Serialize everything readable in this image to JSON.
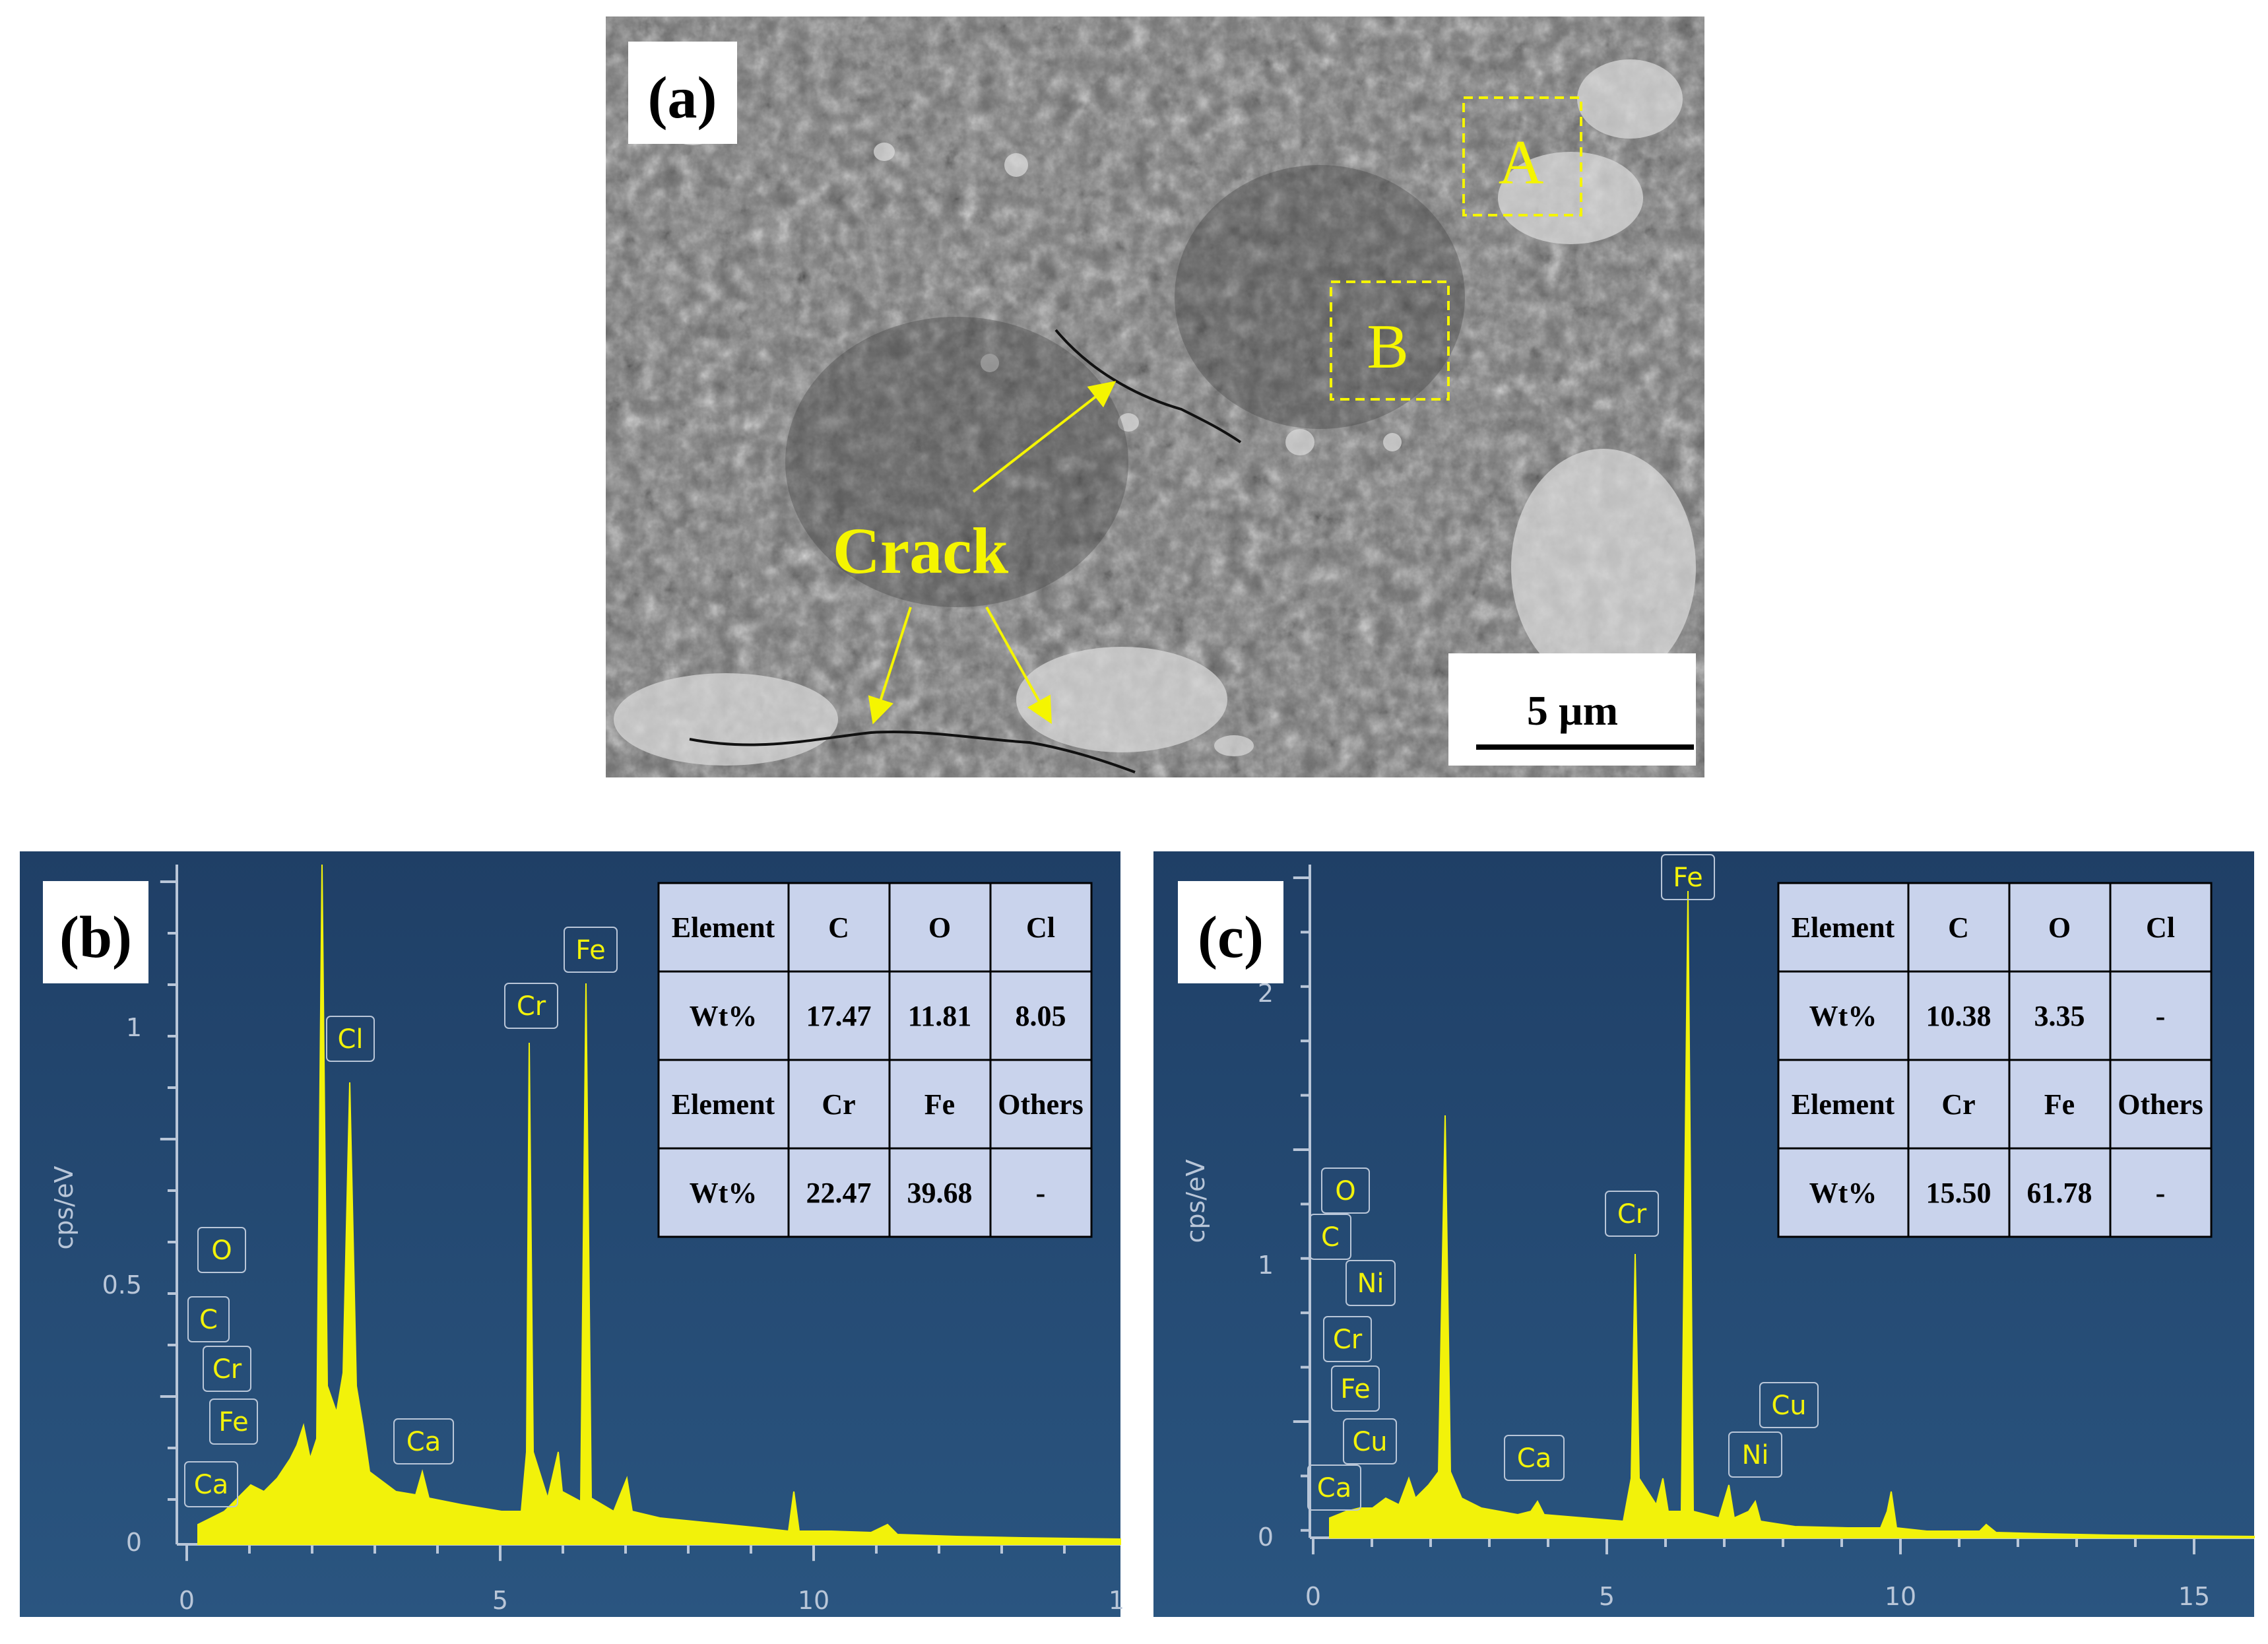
{
  "figure": {
    "panel_a": {
      "label": "(a)",
      "annotation": "Crack",
      "region_a": "A",
      "region_b": "B",
      "scale_bar": "5 µm"
    },
    "panel_b": {
      "label": "(b)",
      "ylabel": "cps/eV",
      "y_ticks": [
        "0",
        "0.5",
        "1"
      ],
      "x_ticks": [
        "0",
        "5",
        "10",
        "1"
      ],
      "peaks": [
        "O",
        "C",
        "Cr",
        "Fe",
        "Ca",
        "Cl",
        "Ca",
        "Cr",
        "Fe"
      ],
      "table": {
        "rows": [
          [
            "Element",
            "C",
            "O",
            "Cl"
          ],
          [
            "Wt%",
            "17.47",
            "11.81",
            "8.05"
          ],
          [
            "Element",
            "Cr",
            "Fe",
            "Others"
          ],
          [
            "Wt%",
            "22.47",
            "39.68",
            "-"
          ]
        ]
      }
    },
    "panel_c": {
      "label": "(c)",
      "ylabel": "cps/eV",
      "y_ticks": [
        "0",
        "1",
        "2"
      ],
      "x_ticks": [
        "0",
        "5",
        "10",
        "15"
      ],
      "peaks": [
        "O",
        "C",
        "Ni",
        "Cr",
        "Fe",
        "Cu",
        "Ca",
        "Ca",
        "Cr",
        "Fe",
        "Ni",
        "Cu"
      ],
      "table": {
        "rows": [
          [
            "Element",
            "C",
            "O",
            "Cl"
          ],
          [
            "Wt%",
            "10.38",
            "3.35",
            "-"
          ],
          [
            "Element",
            "Cr",
            "Fe",
            "Others"
          ],
          [
            "Wt%",
            "15.50",
            "61.78",
            "-"
          ]
        ]
      }
    }
  },
  "colors": {
    "spectrum_bg": "#23466e",
    "spectrum_fill": "#f2f20a",
    "table_fill": "#c9d3ec",
    "annotation": "#f5f500"
  }
}
